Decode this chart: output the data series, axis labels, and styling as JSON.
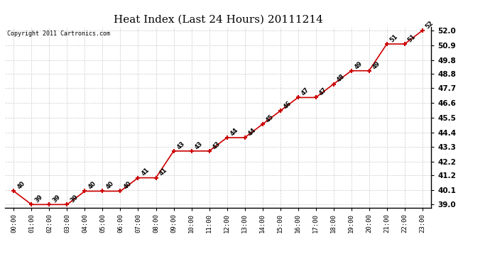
{
  "title": "Heat Index (Last 24 Hours) 20111214",
  "copyright": "Copyright 2011 Cartronics.com",
  "hours": [
    "00:00",
    "01:00",
    "02:00",
    "03:00",
    "04:00",
    "05:00",
    "06:00",
    "07:00",
    "08:00",
    "09:00",
    "10:00",
    "11:00",
    "12:00",
    "13:00",
    "14:00",
    "15:00",
    "16:00",
    "17:00",
    "18:00",
    "19:00",
    "20:00",
    "21:00",
    "22:00",
    "23:00"
  ],
  "values": [
    40,
    39,
    39,
    39,
    40,
    40,
    40,
    41,
    41,
    43,
    43,
    43,
    44,
    44,
    45,
    46,
    47,
    47,
    48,
    49,
    49,
    51,
    51,
    52
  ],
  "line_color": "#cc0000",
  "marker_color": "#cc0000",
  "bg_color": "#ffffff",
  "grid_color": "#cccccc",
  "ylim": [
    38.78,
    52.3
  ],
  "yticks": [
    39.0,
    40.1,
    41.2,
    42.2,
    43.3,
    44.4,
    45.5,
    46.6,
    47.7,
    48.8,
    49.8,
    50.9,
    52.0
  ],
  "title_fontsize": 11,
  "anno_fontsize": 6.0,
  "tick_fontsize": 6.5,
  "ytick_fontsize": 7.5
}
